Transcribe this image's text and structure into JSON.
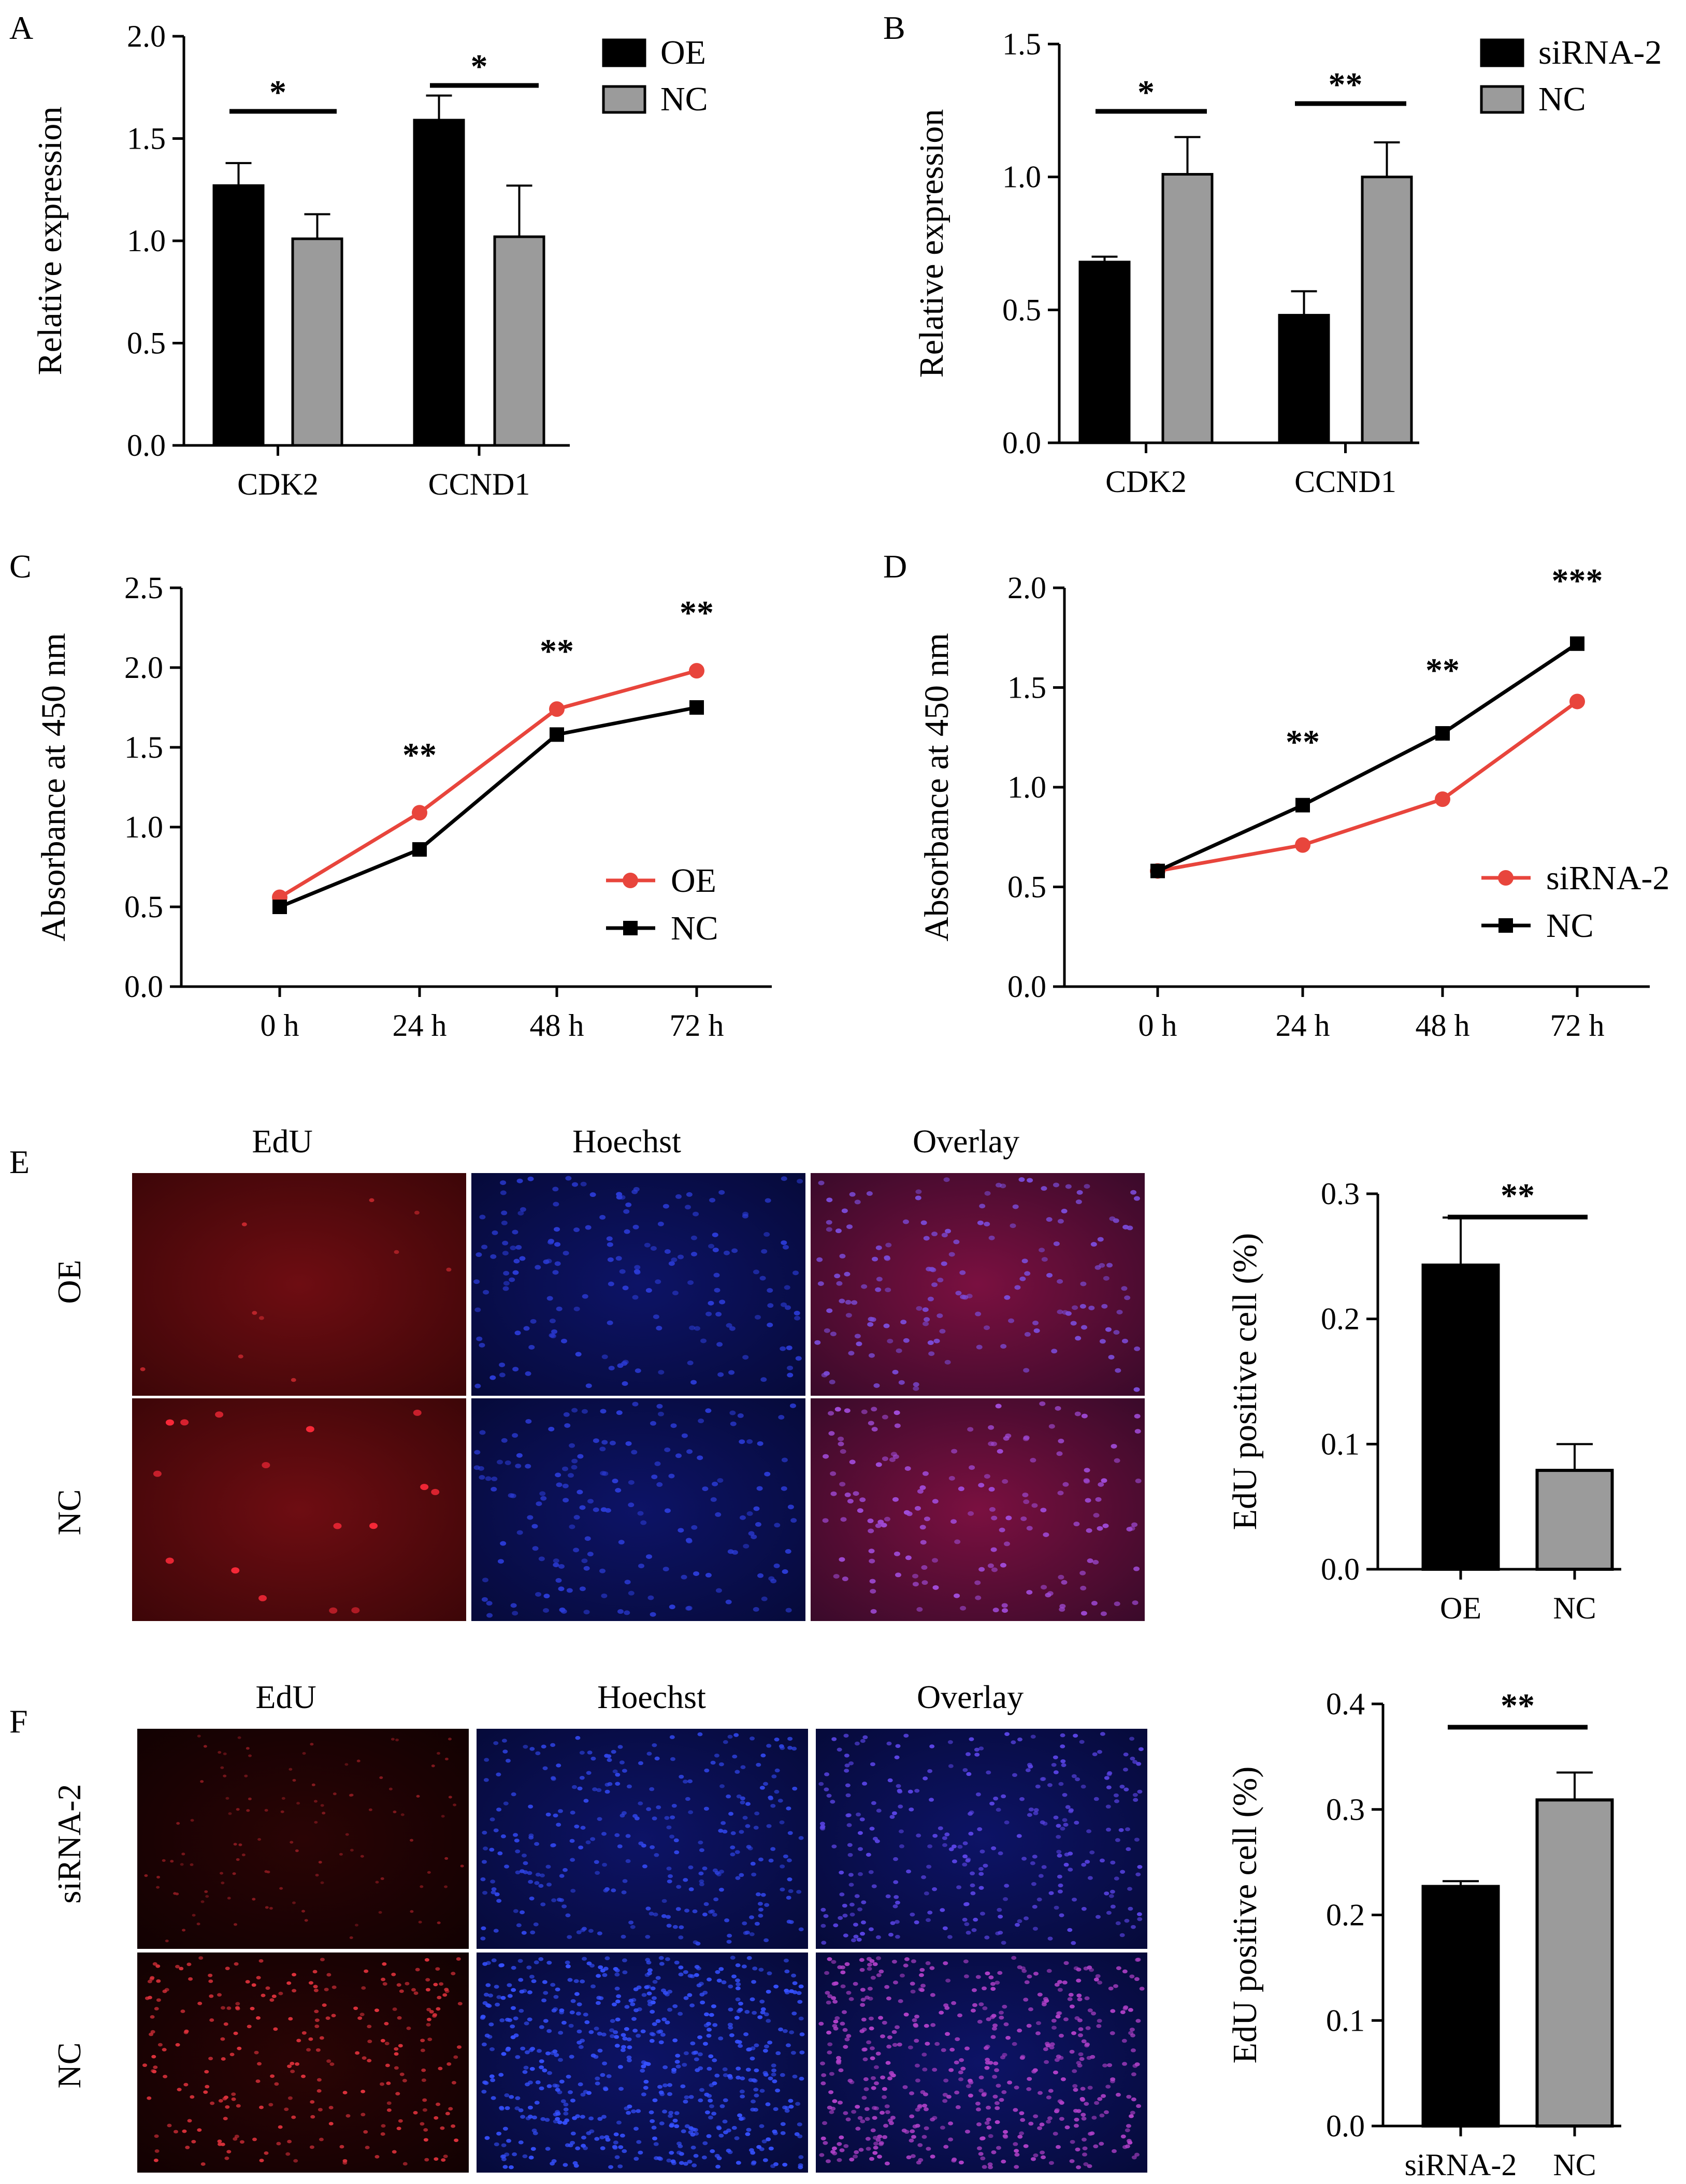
{
  "figure": {
    "panel_letters": [
      "A",
      "B",
      "C",
      "D",
      "E",
      "F"
    ],
    "micrograph_columns": [
      "EdU",
      "Hoechst",
      "Overlay"
    ],
    "micrograph_rows_E": [
      "OE",
      "NC"
    ],
    "micrograph_rows_F": [
      "siRNA-2",
      "NC"
    ]
  },
  "colors": {
    "black_bar": "#000000",
    "gray_bar": "#9b9b9b",
    "red_line": "#e8453c",
    "black_line": "#000000",
    "edu_bg": "#5a0a0e",
    "hoechst_bg": "#0a0f4e"
  },
  "chart_data": [
    {
      "id": "A",
      "type": "bar",
      "title": "",
      "xlabel": "",
      "ylabel": "Relative expression",
      "ylim": [
        0,
        2.0
      ],
      "yticks": [
        "0.0",
        "0.5",
        "1.0",
        "1.5",
        "2.0"
      ],
      "categories": [
        "CDK2",
        "CCND1"
      ],
      "series": [
        {
          "name": "OE",
          "values": [
            1.27,
            1.59
          ],
          "errors": [
            0.11,
            0.12
          ],
          "color": "#000000"
        },
        {
          "name": "NC",
          "values": [
            1.01,
            1.02
          ],
          "errors": [
            0.12,
            0.25
          ],
          "color": "#9b9b9b"
        }
      ],
      "significance": [
        "*",
        "*"
      ],
      "legend": "top-right"
    },
    {
      "id": "B",
      "type": "bar",
      "title": "",
      "xlabel": "",
      "ylabel": "Relative expression",
      "ylim": [
        0,
        1.5
      ],
      "yticks": [
        "0.0",
        "0.5",
        "1.0",
        "1.5"
      ],
      "categories": [
        "CDK2",
        "CCND1"
      ],
      "series": [
        {
          "name": "siRNA-2",
          "values": [
            0.68,
            0.48
          ],
          "errors": [
            0.02,
            0.09
          ],
          "color": "#000000"
        },
        {
          "name": "NC",
          "values": [
            1.01,
            1.0
          ],
          "errors": [
            0.14,
            0.13
          ],
          "color": "#9b9b9b"
        }
      ],
      "significance": [
        "*",
        "**"
      ],
      "legend": "top-right"
    },
    {
      "id": "C",
      "type": "line",
      "title": "",
      "xlabel": "",
      "ylabel": "Absorbance at 450 nm",
      "ylim": [
        0,
        2.5
      ],
      "yticks": [
        "0.0",
        "0.5",
        "1.0",
        "1.5",
        "2.0",
        "2.5"
      ],
      "categories": [
        "0 h",
        "24 h",
        "48 h",
        "72 h"
      ],
      "series": [
        {
          "name": "OE",
          "values": [
            0.56,
            1.09,
            1.74,
            1.98
          ],
          "color": "#e8453c",
          "marker": "circle"
        },
        {
          "name": "NC",
          "values": [
            0.5,
            0.86,
            1.58,
            1.75
          ],
          "color": "#000000",
          "marker": "square"
        }
      ],
      "significance": [
        "",
        "**",
        "**",
        "**"
      ],
      "legend": "bottom-right"
    },
    {
      "id": "D",
      "type": "line",
      "title": "",
      "xlabel": "",
      "ylabel": "Absorbance at 450 nm",
      "ylim": [
        0,
        2.0
      ],
      "yticks": [
        "0.0",
        "0.5",
        "1.0",
        "1.5",
        "2.0"
      ],
      "categories": [
        "0 h",
        "24 h",
        "48 h",
        "72 h"
      ],
      "series": [
        {
          "name": "siRNA-2",
          "values": [
            0.58,
            0.71,
            0.94,
            1.43
          ],
          "color": "#e8453c",
          "marker": "circle"
        },
        {
          "name": "NC",
          "values": [
            0.58,
            0.91,
            1.27,
            1.72
          ],
          "color": "#000000",
          "marker": "square"
        }
      ],
      "significance": [
        "",
        "**",
        "**",
        "***"
      ],
      "legend": "bottom-right"
    },
    {
      "id": "E",
      "type": "bar",
      "title": "",
      "xlabel": "",
      "ylabel": "EdU positive cell (%)",
      "ylim": [
        0,
        0.3
      ],
      "yticks": [
        "0.0",
        "0.1",
        "0.2",
        "0.3"
      ],
      "categories": [
        "OE",
        "NC"
      ],
      "values": [
        0.243,
        0.079
      ],
      "errors": [
        0.038,
        0.021
      ],
      "colors": [
        "#000000",
        "#9b9b9b"
      ],
      "significance": "**"
    },
    {
      "id": "F",
      "type": "bar",
      "title": "",
      "xlabel": "",
      "ylabel": "EdU positive cell (%)",
      "ylim": [
        0,
        0.4
      ],
      "yticks": [
        "0.0",
        "0.1",
        "0.2",
        "0.3",
        "0.4"
      ],
      "categories": [
        "siRNA-2",
        "NC"
      ],
      "values": [
        0.227,
        0.309
      ],
      "errors": [
        0.005,
        0.026
      ],
      "colors": [
        "#000000",
        "#9b9b9b"
      ],
      "significance": "**"
    }
  ]
}
